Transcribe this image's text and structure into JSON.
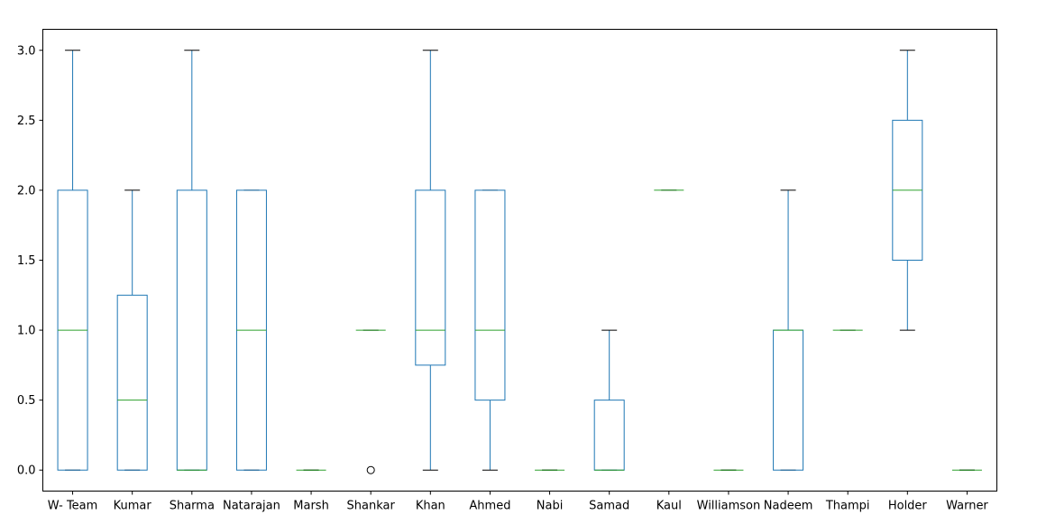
{
  "chart_data": {
    "type": "boxplot",
    "title": "",
    "xlabel": "",
    "ylabel": "",
    "ylim": [
      -0.15,
      3.15
    ],
    "yticks": [
      0.0,
      0.5,
      1.0,
      1.5,
      2.0,
      2.5,
      3.0
    ],
    "ytick_labels": [
      "0.0",
      "0.5",
      "1.0",
      "1.5",
      "2.0",
      "2.5",
      "3.0"
    ],
    "grid": false,
    "colors": {
      "box": "#1f77b4",
      "median": "#2ca02c",
      "whisker_cap": "#000000",
      "outlier": "#000000"
    },
    "categories": [
      "W- Team",
      "Kumar",
      "Sharma",
      "Natarajan",
      "Marsh",
      "Shankar",
      "Khan",
      "Ahmed",
      "Nabi",
      "Samad",
      "Kaul",
      "Williamson",
      "Nadeem",
      "Thampi",
      "Holder",
      "Warner"
    ],
    "boxes": [
      {
        "name": "W- Team",
        "whislo": 0.0,
        "q1": 0.0,
        "med": 1.0,
        "q3": 2.0,
        "whishi": 3.0,
        "fliers": []
      },
      {
        "name": "Kumar",
        "whislo": 0.0,
        "q1": 0.0,
        "med": 0.5,
        "q3": 1.25,
        "whishi": 2.0,
        "fliers": []
      },
      {
        "name": "Sharma",
        "whislo": 0.0,
        "q1": 0.0,
        "med": 0.0,
        "q3": 2.0,
        "whishi": 3.0,
        "fliers": []
      },
      {
        "name": "Natarajan",
        "whislo": 0.0,
        "q1": 0.0,
        "med": 1.0,
        "q3": 2.0,
        "whishi": 2.0,
        "fliers": []
      },
      {
        "name": "Marsh",
        "whislo": 0.0,
        "q1": 0.0,
        "med": 0.0,
        "q3": 0.0,
        "whishi": 0.0,
        "fliers": []
      },
      {
        "name": "Shankar",
        "whislo": 1.0,
        "q1": 1.0,
        "med": 1.0,
        "q3": 1.0,
        "whishi": 1.0,
        "fliers": [
          0.0
        ]
      },
      {
        "name": "Khan",
        "whislo": 0.0,
        "q1": 0.75,
        "med": 1.0,
        "q3": 2.0,
        "whishi": 3.0,
        "fliers": []
      },
      {
        "name": "Ahmed",
        "whislo": 0.0,
        "q1": 0.5,
        "med": 1.0,
        "q3": 2.0,
        "whishi": 2.0,
        "fliers": []
      },
      {
        "name": "Nabi",
        "whislo": 0.0,
        "q1": 0.0,
        "med": 0.0,
        "q3": 0.0,
        "whishi": 0.0,
        "fliers": []
      },
      {
        "name": "Samad",
        "whislo": 0.0,
        "q1": 0.0,
        "med": 0.0,
        "q3": 0.5,
        "whishi": 1.0,
        "fliers": []
      },
      {
        "name": "Kaul",
        "whislo": 2.0,
        "q1": 2.0,
        "med": 2.0,
        "q3": 2.0,
        "whishi": 2.0,
        "fliers": []
      },
      {
        "name": "Williamson",
        "whislo": 0.0,
        "q1": 0.0,
        "med": 0.0,
        "q3": 0.0,
        "whishi": 0.0,
        "fliers": []
      },
      {
        "name": "Nadeem",
        "whislo": 0.0,
        "q1": 0.0,
        "med": 1.0,
        "q3": 1.0,
        "whishi": 2.0,
        "fliers": []
      },
      {
        "name": "Thampi",
        "whislo": 1.0,
        "q1": 1.0,
        "med": 1.0,
        "q3": 1.0,
        "whishi": 1.0,
        "fliers": []
      },
      {
        "name": "Holder",
        "whislo": 1.0,
        "q1": 1.5,
        "med": 2.0,
        "q3": 2.5,
        "whishi": 3.0,
        "fliers": []
      },
      {
        "name": "Warner",
        "whislo": 0.0,
        "q1": 0.0,
        "med": 0.0,
        "q3": 0.0,
        "whishi": 0.0,
        "fliers": []
      }
    ]
  }
}
